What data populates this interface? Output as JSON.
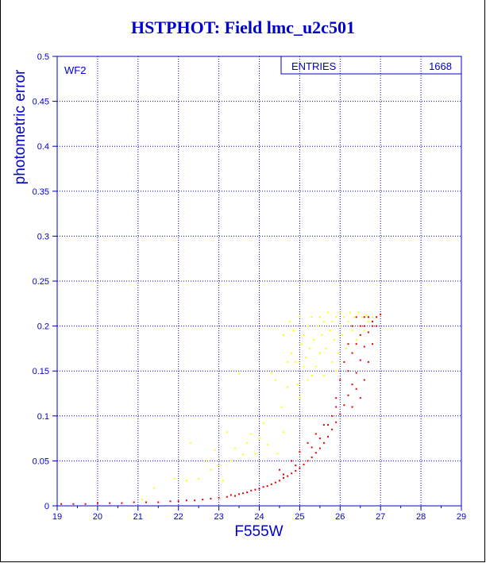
{
  "title": "HSTPHOT: Field lmc_u2c501",
  "colors": {
    "axis": "#0000cc",
    "series_bright": "#ffff00",
    "series_main": "#e00000"
  },
  "chart_data": {
    "type": "scatter",
    "title": "HSTPHOT: Field lmc_u2c501",
    "xlabel": "F555W",
    "ylabel": "photometric error",
    "xlim": [
      19,
      29
    ],
    "ylim": [
      0,
      0.5
    ],
    "x_ticks": [
      "19",
      "20",
      "21",
      "22",
      "23",
      "24",
      "25",
      "26",
      "27",
      "28",
      "29"
    ],
    "y_ticks": [
      "0",
      "0.05",
      "0.1",
      "0.15",
      "0.2",
      "0.25",
      "0.3",
      "0.35",
      "0.4",
      "0.45",
      "0.5"
    ],
    "grid": true,
    "panel_label": "WF2",
    "stats_box": {
      "label": "ENTRIES",
      "value": "1668"
    },
    "series": [
      {
        "color": "#ffff00",
        "points": [
          [
            21.1,
            0.007
          ],
          [
            21.4,
            0.02
          ],
          [
            21.9,
            0.03
          ],
          [
            22.2,
            0.028
          ],
          [
            22.3,
            0.07
          ],
          [
            22.5,
            0.03
          ],
          [
            22.7,
            0.05
          ],
          [
            22.8,
            0.04
          ],
          [
            22.9,
            0.062
          ],
          [
            23.0,
            0.045
          ],
          [
            23.1,
            0.028
          ],
          [
            23.2,
            0.082
          ],
          [
            23.3,
            0.05
          ],
          [
            23.4,
            0.064
          ],
          [
            23.5,
            0.147
          ],
          [
            23.6,
            0.057
          ],
          [
            23.7,
            0.07
          ],
          [
            23.8,
            0.08
          ],
          [
            23.9,
            0.058
          ],
          [
            24.0,
            0.075
          ],
          [
            24.1,
            0.092
          ],
          [
            24.2,
            0.068
          ],
          [
            24.3,
            0.148
          ],
          [
            24.4,
            0.14
          ],
          [
            24.45,
            0.058
          ],
          [
            24.55,
            0.11
          ],
          [
            24.6,
            0.082
          ],
          [
            24.7,
            0.132
          ],
          [
            24.75,
            0.205
          ],
          [
            24.8,
            0.17
          ],
          [
            24.85,
            0.195
          ],
          [
            24.9,
            0.16
          ],
          [
            24.95,
            0.135
          ],
          [
            25.0,
            0.21
          ],
          [
            25.0,
            0.12
          ],
          [
            25.05,
            0.18
          ],
          [
            25.1,
            0.19
          ],
          [
            25.15,
            0.165
          ],
          [
            25.2,
            0.14
          ],
          [
            25.2,
            0.2
          ],
          [
            25.25,
            0.175
          ],
          [
            25.3,
            0.21
          ],
          [
            25.35,
            0.185
          ],
          [
            25.4,
            0.155
          ],
          [
            25.45,
            0.2
          ],
          [
            25.5,
            0.17
          ],
          [
            25.5,
            0.21
          ],
          [
            25.55,
            0.19
          ],
          [
            25.6,
            0.145
          ],
          [
            25.6,
            0.205
          ],
          [
            25.65,
            0.175
          ],
          [
            25.7,
            0.215
          ],
          [
            25.75,
            0.195
          ],
          [
            25.8,
            0.16
          ],
          [
            25.8,
            0.205
          ],
          [
            25.85,
            0.185
          ],
          [
            25.9,
            0.21
          ],
          [
            25.95,
            0.17
          ],
          [
            26.0,
            0.2
          ],
          [
            26.0,
            0.215
          ],
          [
            26.05,
            0.19
          ],
          [
            26.1,
            0.21
          ],
          [
            26.15,
            0.175
          ],
          [
            26.2,
            0.205
          ],
          [
            26.25,
            0.215
          ],
          [
            26.3,
            0.195
          ],
          [
            26.35,
            0.21
          ],
          [
            26.4,
            0.185
          ],
          [
            26.45,
            0.215
          ],
          [
            26.5,
            0.2
          ],
          [
            26.55,
            0.21
          ],
          [
            26.6,
            0.195
          ],
          [
            26.65,
            0.212
          ],
          [
            26.7,
            0.205
          ],
          [
            26.8,
            0.21
          ],
          [
            24.6,
            0.19
          ],
          [
            24.7,
            0.16
          ],
          [
            25.1,
            0.155
          ],
          [
            25.3,
            0.145
          ],
          [
            25.9,
            0.15
          ]
        ]
      },
      {
        "color": "#e00000",
        "points": [
          [
            19.1,
            0.002
          ],
          [
            19.4,
            0.002
          ],
          [
            19.7,
            0.002
          ],
          [
            20.0,
            0.003
          ],
          [
            20.3,
            0.003
          ],
          [
            20.6,
            0.003
          ],
          [
            20.9,
            0.004
          ],
          [
            21.2,
            0.004
          ],
          [
            21.5,
            0.004
          ],
          [
            21.8,
            0.005
          ],
          [
            22.0,
            0.005
          ],
          [
            22.2,
            0.006
          ],
          [
            22.4,
            0.006
          ],
          [
            22.6,
            0.007
          ],
          [
            22.8,
            0.008
          ],
          [
            23.0,
            0.009
          ],
          [
            23.2,
            0.01
          ],
          [
            23.3,
            0.012
          ],
          [
            23.4,
            0.011
          ],
          [
            23.5,
            0.013
          ],
          [
            23.6,
            0.014
          ],
          [
            23.7,
            0.015
          ],
          [
            23.8,
            0.017
          ],
          [
            23.9,
            0.018
          ],
          [
            24.0,
            0.019
          ],
          [
            24.1,
            0.021
          ],
          [
            24.2,
            0.022
          ],
          [
            24.3,
            0.024
          ],
          [
            24.4,
            0.026
          ],
          [
            24.5,
            0.028
          ],
          [
            24.6,
            0.031
          ],
          [
            24.7,
            0.033
          ],
          [
            24.8,
            0.036
          ],
          [
            24.9,
            0.039
          ],
          [
            25.0,
            0.042
          ],
          [
            25.1,
            0.046
          ],
          [
            25.2,
            0.05
          ],
          [
            25.3,
            0.054
          ],
          [
            25.4,
            0.059
          ],
          [
            25.5,
            0.064
          ],
          [
            25.6,
            0.07
          ],
          [
            25.7,
            0.077
          ],
          [
            25.8,
            0.085
          ],
          [
            25.9,
            0.093
          ],
          [
            26.0,
            0.102
          ],
          [
            26.1,
            0.112
          ],
          [
            26.2,
            0.123
          ],
          [
            26.3,
            0.135
          ],
          [
            26.4,
            0.148
          ],
          [
            26.5,
            0.162
          ],
          [
            26.6,
            0.177
          ],
          [
            26.7,
            0.193
          ],
          [
            26.8,
            0.205
          ],
          [
            26.9,
            0.21
          ],
          [
            27.0,
            0.213
          ],
          [
            24.5,
            0.04
          ],
          [
            24.8,
            0.05
          ],
          [
            25.0,
            0.06
          ],
          [
            25.2,
            0.07
          ],
          [
            25.4,
            0.08
          ],
          [
            25.6,
            0.09
          ],
          [
            25.8,
            0.1
          ],
          [
            25.9,
            0.12
          ],
          [
            26.0,
            0.14
          ],
          [
            26.1,
            0.16
          ],
          [
            26.2,
            0.18
          ],
          [
            26.3,
            0.2
          ],
          [
            26.4,
            0.21
          ],
          [
            26.5,
            0.19
          ],
          [
            26.6,
            0.2
          ],
          [
            26.2,
            0.15
          ],
          [
            26.3,
            0.17
          ],
          [
            26.4,
            0.18
          ],
          [
            26.5,
            0.2
          ],
          [
            26.6,
            0.21
          ],
          [
            26.7,
            0.21
          ],
          [
            26.8,
            0.2
          ],
          [
            26.9,
            0.2
          ],
          [
            26.5,
            0.12
          ],
          [
            26.6,
            0.14
          ],
          [
            26.7,
            0.16
          ],
          [
            26.8,
            0.18
          ],
          [
            26.3,
            0.11
          ],
          [
            26.4,
            0.13
          ],
          [
            25.7,
            0.09
          ],
          [
            25.9,
            0.11
          ],
          [
            25.5,
            0.075
          ],
          [
            25.3,
            0.065
          ],
          [
            24.9,
            0.045
          ],
          [
            24.6,
            0.035
          ]
        ]
      }
    ]
  }
}
